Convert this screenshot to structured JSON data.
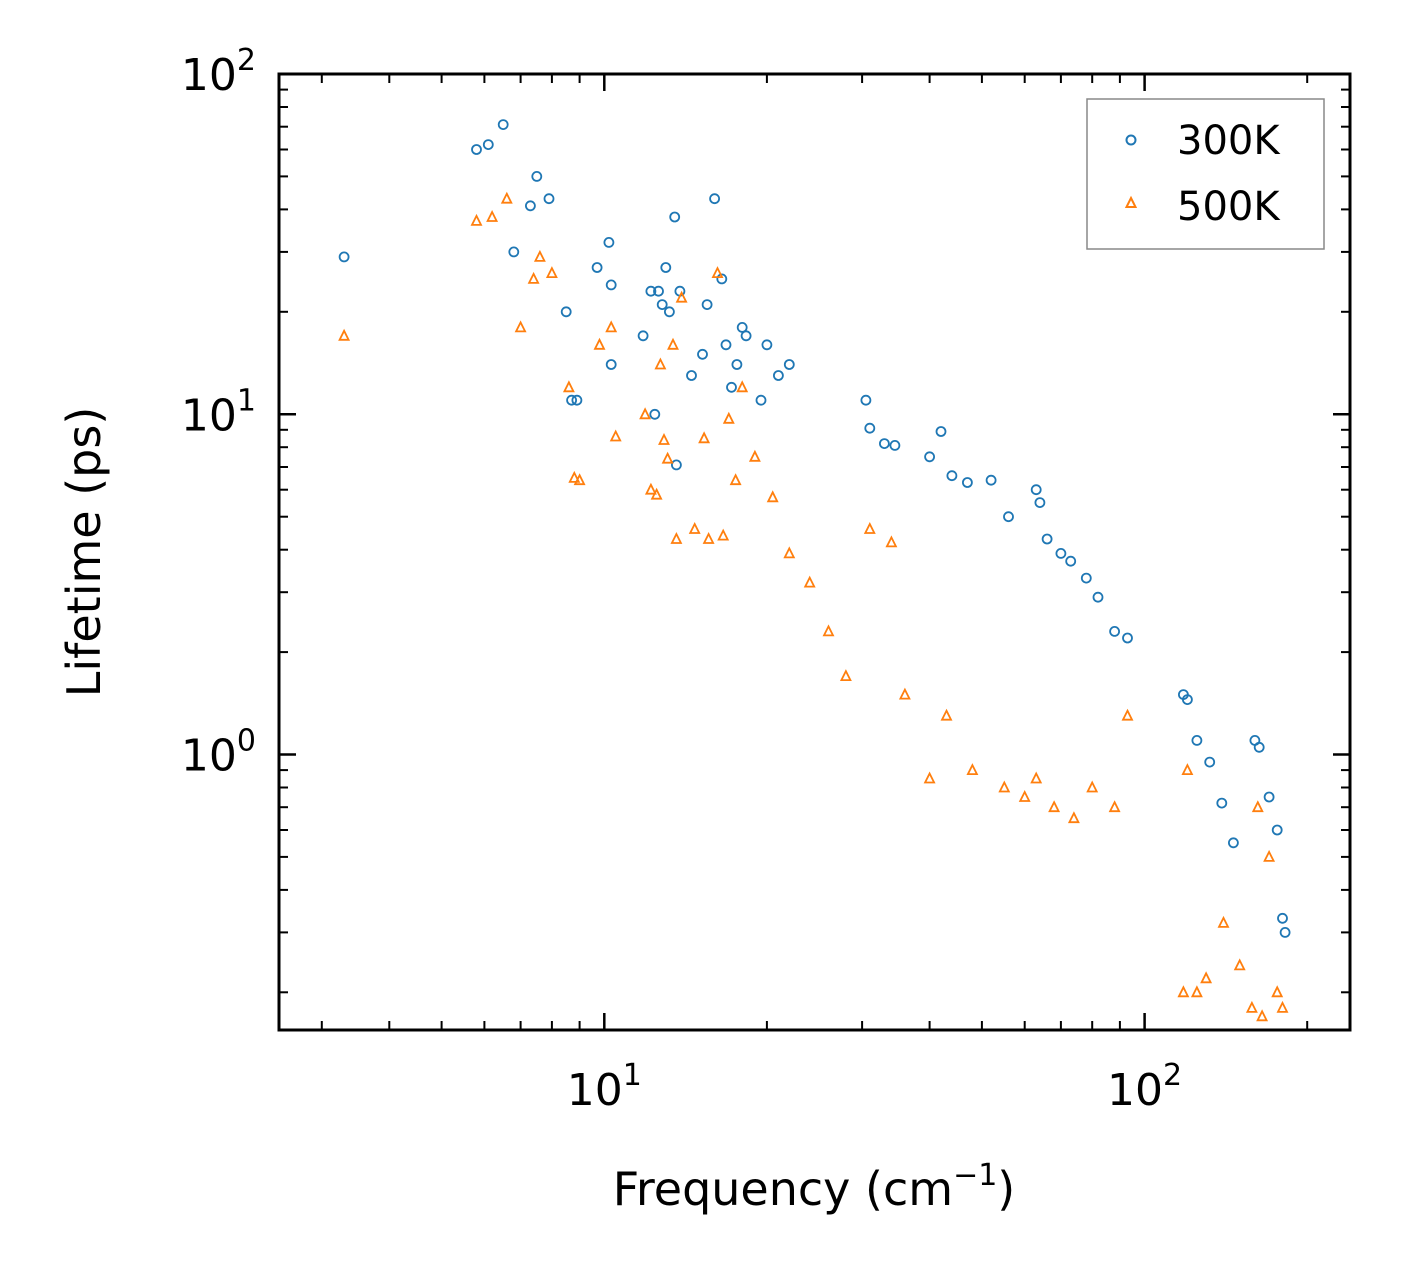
{
  "chart_data": {
    "type": "scatter",
    "title": "",
    "xlabel": "Frequency",
    "xlabel_unit": "(cm",
    "xlabel_unit_exp": "−1",
    "xlabel_unit_close": ")",
    "ylabel": "Lifetime (ps)",
    "xscale": "log",
    "yscale": "log",
    "xlim": [
      2.5,
      240
    ],
    "ylim": [
      0.155,
      100
    ],
    "x_ticks": [
      {
        "value": 10,
        "base": "10",
        "exp": "1"
      },
      {
        "value": 100,
        "base": "10",
        "exp": "2"
      }
    ],
    "y_ticks": [
      {
        "value": 1,
        "base": "10",
        "exp": "0"
      },
      {
        "value": 10,
        "base": "10",
        "exp": "1"
      },
      {
        "value": 100,
        "base": "10",
        "exp": "2"
      }
    ],
    "legend": {
      "position": "top-right"
    },
    "colors": {
      "300K": "#1f77b4",
      "500K": "#ff7f0e"
    },
    "series": [
      {
        "name": "300K",
        "marker": "circle",
        "points": [
          [
            3.3,
            29
          ],
          [
            5.8,
            60
          ],
          [
            6.1,
            62
          ],
          [
            6.5,
            71
          ],
          [
            6.8,
            30
          ],
          [
            7.3,
            41
          ],
          [
            7.5,
            50
          ],
          [
            7.9,
            43
          ],
          [
            8.5,
            20
          ],
          [
            8.7,
            11
          ],
          [
            8.9,
            11
          ],
          [
            9.7,
            27
          ],
          [
            10.2,
            32
          ],
          [
            10.3,
            24
          ],
          [
            10.3,
            14
          ],
          [
            11.8,
            17
          ],
          [
            12.2,
            23
          ],
          [
            12.4,
            10
          ],
          [
            12.6,
            23
          ],
          [
            12.8,
            21
          ],
          [
            13.0,
            27
          ],
          [
            13.2,
            20
          ],
          [
            13.5,
            38
          ],
          [
            13.6,
            7.1
          ],
          [
            13.8,
            23
          ],
          [
            14.5,
            13
          ],
          [
            15.2,
            15
          ],
          [
            15.5,
            21
          ],
          [
            16.0,
            43
          ],
          [
            16.5,
            25
          ],
          [
            16.8,
            16
          ],
          [
            17.2,
            12
          ],
          [
            17.6,
            14
          ],
          [
            18.0,
            18
          ],
          [
            18.3,
            17
          ],
          [
            19.5,
            11
          ],
          [
            20.0,
            16
          ],
          [
            21.0,
            13
          ],
          [
            22.0,
            14
          ],
          [
            30.5,
            11
          ],
          [
            31.0,
            9.1
          ],
          [
            33.0,
            8.2
          ],
          [
            34.5,
            8.1
          ],
          [
            40.0,
            7.5
          ],
          [
            42.0,
            8.9
          ],
          [
            44.0,
            6.6
          ],
          [
            47.0,
            6.3
          ],
          [
            52.0,
            6.4
          ],
          [
            56.0,
            5.0
          ],
          [
            63.0,
            6.0
          ],
          [
            64.0,
            5.5
          ],
          [
            66.0,
            4.3
          ],
          [
            70.0,
            3.9
          ],
          [
            73.0,
            3.7
          ],
          [
            78.0,
            3.3
          ],
          [
            82.0,
            2.9
          ],
          [
            88.0,
            2.3
          ],
          [
            93.0,
            2.2
          ],
          [
            118,
            1.5
          ],
          [
            120,
            1.45
          ],
          [
            125,
            1.1
          ],
          [
            132,
            0.95
          ],
          [
            139,
            0.72
          ],
          [
            146,
            0.55
          ],
          [
            160,
            1.1
          ],
          [
            163,
            1.05
          ],
          [
            170,
            0.75
          ],
          [
            176,
            0.6
          ],
          [
            180,
            0.33
          ],
          [
            182,
            0.3
          ]
        ]
      },
      {
        "name": "500K",
        "marker": "triangle",
        "points": [
          [
            3.3,
            17
          ],
          [
            5.8,
            37
          ],
          [
            6.2,
            38
          ],
          [
            6.6,
            43
          ],
          [
            7.0,
            18
          ],
          [
            7.4,
            25
          ],
          [
            7.6,
            29
          ],
          [
            8.0,
            26
          ],
          [
            8.6,
            12
          ],
          [
            8.8,
            6.5
          ],
          [
            9.0,
            6.4
          ],
          [
            9.8,
            16
          ],
          [
            10.3,
            18
          ],
          [
            10.5,
            8.6
          ],
          [
            11.9,
            10
          ],
          [
            12.2,
            6
          ],
          [
            12.5,
            5.8
          ],
          [
            12.7,
            14
          ],
          [
            12.9,
            8.4
          ],
          [
            13.1,
            7.4
          ],
          [
            13.4,
            16
          ],
          [
            13.6,
            4.3
          ],
          [
            13.9,
            22
          ],
          [
            14.7,
            4.6
          ],
          [
            15.3,
            8.5
          ],
          [
            15.6,
            4.3
          ],
          [
            16.2,
            26
          ],
          [
            16.6,
            4.4
          ],
          [
            17.0,
            9.7
          ],
          [
            17.5,
            6.4
          ],
          [
            18.0,
            12
          ],
          [
            19.0,
            7.5
          ],
          [
            20.5,
            5.7
          ],
          [
            22.0,
            3.9
          ],
          [
            24.0,
            3.2
          ],
          [
            26.0,
            2.3
          ],
          [
            28.0,
            1.7
          ],
          [
            31.0,
            4.6
          ],
          [
            34.0,
            4.2
          ],
          [
            36.0,
            1.5
          ],
          [
            40.0,
            0.85
          ],
          [
            43.0,
            1.3
          ],
          [
            48.0,
            0.9
          ],
          [
            55.0,
            0.8
          ],
          [
            60.0,
            0.75
          ],
          [
            63.0,
            0.85
          ],
          [
            68.0,
            0.7
          ],
          [
            74.0,
            0.65
          ],
          [
            80.0,
            0.8
          ],
          [
            88.0,
            0.7
          ],
          [
            93.0,
            1.3
          ],
          [
            118,
            0.2
          ],
          [
            120,
            0.9
          ],
          [
            125,
            0.2
          ],
          [
            130,
            0.22
          ],
          [
            140,
            0.32
          ],
          [
            150,
            0.24
          ],
          [
            158,
            0.18
          ],
          [
            162,
            0.7
          ],
          [
            165,
            0.17
          ],
          [
            170,
            0.5
          ],
          [
            176,
            0.2
          ],
          [
            180,
            0.18
          ]
        ]
      }
    ]
  }
}
